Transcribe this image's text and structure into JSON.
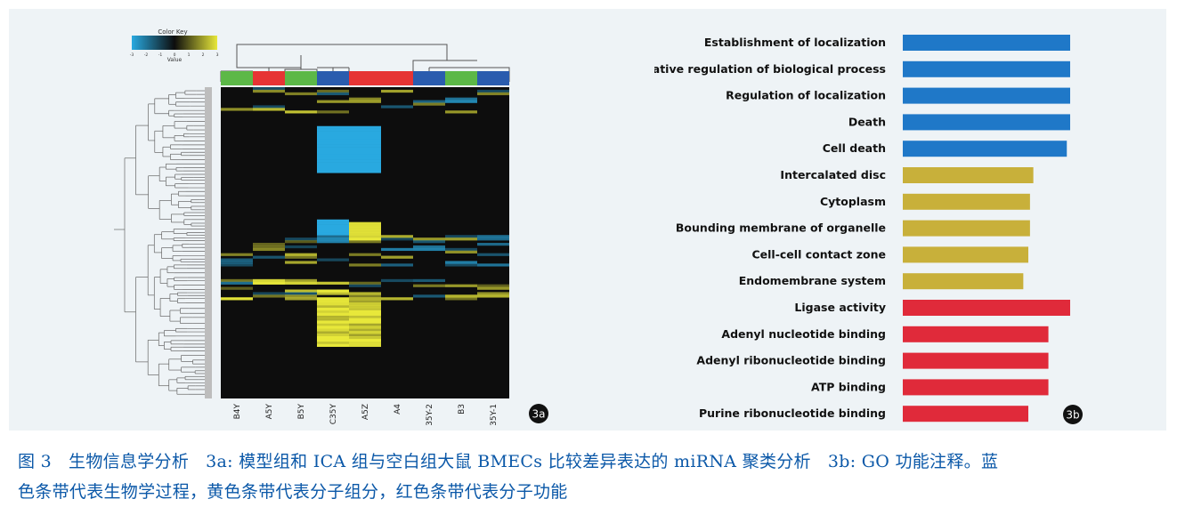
{
  "panel_a": {
    "label": "3a",
    "color_key_title": "Color Key",
    "color_key_axis": "Value",
    "color_key_ticks": [
      "-3",
      "-2",
      "-1",
      "0",
      "1",
      "2",
      "3"
    ],
    "samples": [
      "B4Y",
      "A5Y",
      "B5Y",
      "C35Y",
      "A5Z",
      "A4",
      "C35Y-2",
      "B3",
      "C35Y-1"
    ],
    "group_colors": [
      "#5cb847",
      "#e63434",
      "#5cb847",
      "#2a5cae",
      "#e63434",
      "#e63434",
      "#2a5cae",
      "#5cb847",
      "#2a5cae"
    ],
    "colors": {
      "low": "#29a9e0",
      "mid": "#0d0d0d",
      "high": "#e8e83a"
    }
  },
  "chart_data": {
    "type": "bar",
    "orientation": "horizontal",
    "label": "3b",
    "categories": [
      "Establishment of localization",
      "Negative regulation of biological process",
      "Regulation of localization",
      "Death",
      "Cell death",
      "Intercalated disc",
      "Cytoplasm",
      "Bounding membrane of organelle",
      "Cell-cell contact zone",
      "Endomembrane system",
      "Ligase activity",
      "Adenyl nucleotide binding",
      "Adenyl ribonucleotide binding",
      "ATP binding",
      "Purine ribonucleotide binding"
    ],
    "values": [
      1.0,
      1.0,
      1.0,
      1.0,
      0.98,
      0.78,
      0.76,
      0.76,
      0.75,
      0.72,
      1.0,
      0.87,
      0.87,
      0.87,
      0.75
    ],
    "groups": [
      "BP",
      "BP",
      "BP",
      "BP",
      "BP",
      "CC",
      "CC",
      "CC",
      "CC",
      "CC",
      "MF",
      "MF",
      "MF",
      "MF",
      "MF"
    ],
    "group_colors": {
      "BP": "#1f78c8",
      "CC": "#c8b03a",
      "MF": "#e02a3a"
    },
    "axis": "none",
    "grid": false
  },
  "caption": {
    "line1_parts": [
      "图 3   生物信息学分析   3a: 模型组和 ICA 组与空白组大鼠 BMECs 比较差异表达的 miRNA 聚类分析   3b: GO 功能注释。蓝"
    ],
    "line2": "色条带代表生物学过程，黄色条带代表分子组分，红色条带代表分子功能"
  }
}
